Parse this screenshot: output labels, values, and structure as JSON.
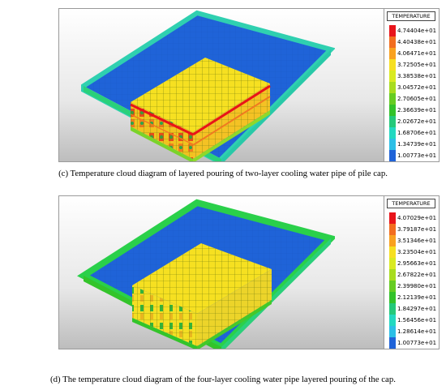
{
  "figure_c": {
    "legend_title": "TEMPERATURE",
    "legend_values": [
      "4.74404e+01",
      "4.40438e+01",
      "4.06471e+01",
      "3.72505e+01",
      "3.38538e+01",
      "3.04572e+01",
      "2.70605e+01",
      "2.36639e+01",
      "2.02672e+01",
      "1.68706e+01",
      "1.34739e+01",
      "1.00773e+01"
    ],
    "caption": "(c) Temperature cloud diagram of layered pouring of two-layer cooling water pipe of pile cap."
  },
  "figure_d": {
    "legend_title": "TEMPERATURE",
    "legend_values": [
      "4.07029e+01",
      "3.79187e+01",
      "3.51346e+01",
      "3.23504e+01",
      "2.95663e+01",
      "2.67822e+01",
      "2.39980e+01",
      "2.12139e+01",
      "1.84297e+01",
      "1.56456e+01",
      "1.28614e+01",
      "1.00773e+01"
    ],
    "caption": "(d) The temperature cloud diagram of the four-layer cooling water pipe layered pouring of the cap."
  },
  "legend_colors": [
    "#e8141b",
    "#f26d1f",
    "#f9a11f",
    "#f6df21",
    "#d9ea22",
    "#a8dc1f",
    "#66cc22",
    "#33c22a",
    "#24c97a",
    "#22d8c0",
    "#2bbfe6",
    "#1f63d8"
  ]
}
